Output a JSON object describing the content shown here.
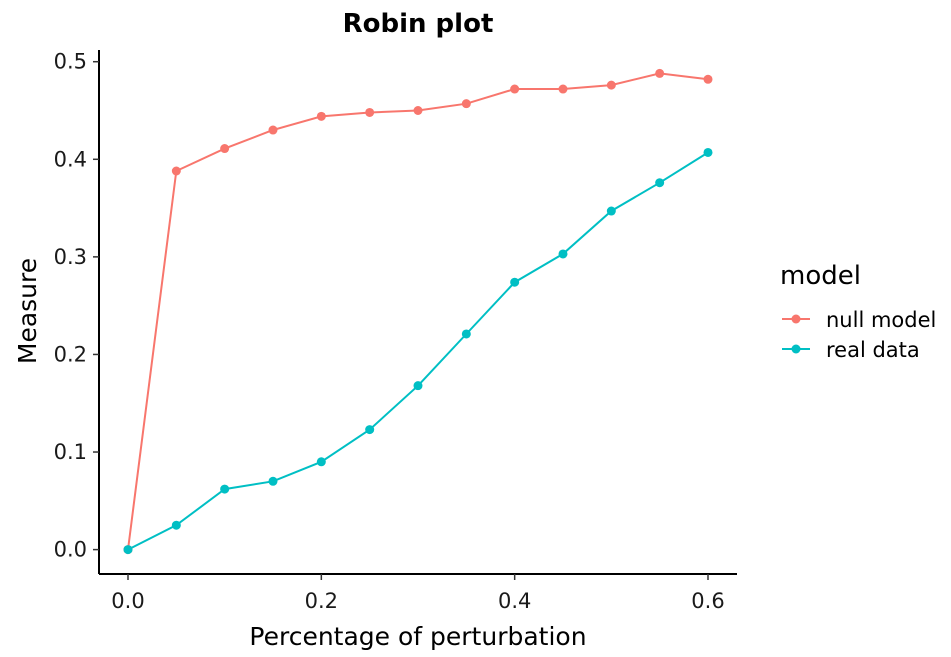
{
  "chart_data": {
    "type": "line",
    "title": "Robin plot",
    "xlabel": "Percentage of perturbation",
    "ylabel": "Measure",
    "xlim": [
      -0.03,
      0.63
    ],
    "ylim": [
      -0.025,
      0.512
    ],
    "xticks": [
      0.0,
      0.2,
      0.4,
      0.6
    ],
    "xtick_labels": [
      "0.0",
      "0.2",
      "0.4",
      "0.6"
    ],
    "yticks": [
      0.0,
      0.1,
      0.2,
      0.3,
      0.4,
      0.5
    ],
    "ytick_labels": [
      "0.0",
      "0.1",
      "0.2",
      "0.3",
      "0.4",
      "0.5"
    ],
    "grid": false,
    "legend": {
      "title": "model",
      "position": "right"
    },
    "x": [
      0.0,
      0.05,
      0.1,
      0.15,
      0.2,
      0.25,
      0.3,
      0.35,
      0.4,
      0.45,
      0.5,
      0.55,
      0.6
    ],
    "series": [
      {
        "name": "null model",
        "color": "#F8766D",
        "values": [
          0.0,
          0.388,
          0.411,
          0.43,
          0.444,
          0.448,
          0.45,
          0.457,
          0.472,
          0.472,
          0.476,
          0.488,
          0.482
        ]
      },
      {
        "name": "real data",
        "color": "#00BFC4",
        "values": [
          0.0,
          0.025,
          0.062,
          0.07,
          0.09,
          0.123,
          0.168,
          0.221,
          0.274,
          0.303,
          0.347,
          0.376,
          0.407
        ]
      }
    ]
  }
}
